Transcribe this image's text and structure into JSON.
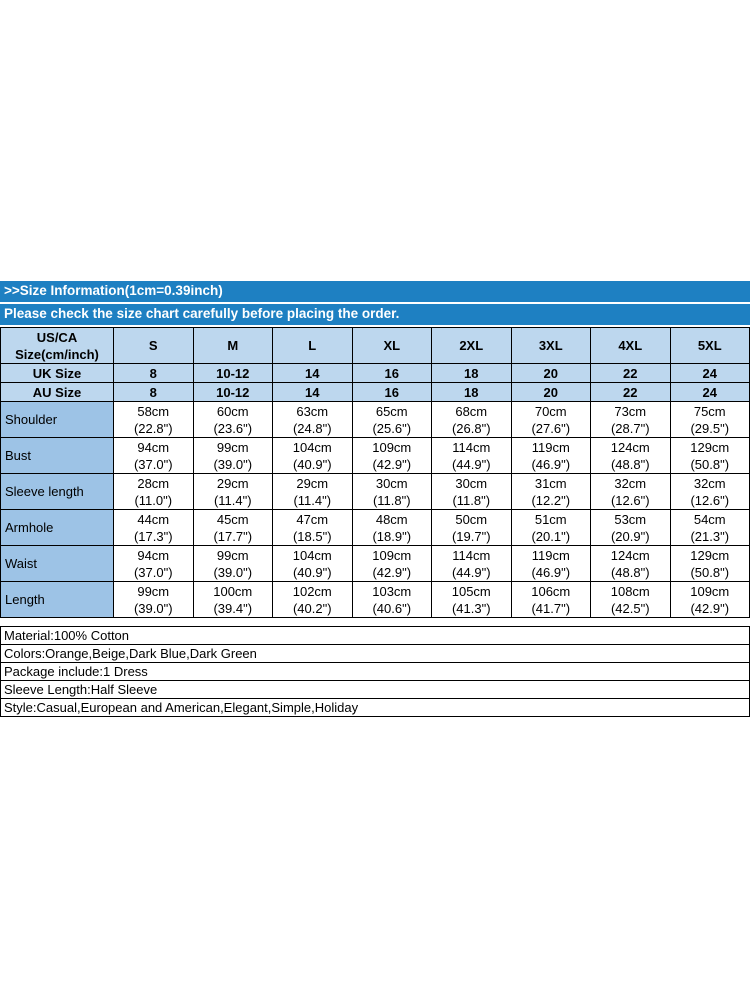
{
  "colors": {
    "banner_blue": "#1e80c2",
    "header_light": "#bdd7ee",
    "label_medium": "#9dc3e6",
    "grid_border": "#000000"
  },
  "banner": {
    "line1": ">>Size Information(1cm=0.39inch)",
    "line2": "Please check the size chart carefully before placing the order."
  },
  "size_table": {
    "corner_line1": "US/CA",
    "corner_line2": "Size(cm/inch)",
    "sizes": [
      "S",
      "M",
      "L",
      "XL",
      "2XL",
      "3XL",
      "4XL",
      "5XL"
    ],
    "uk_row": {
      "label": "UK Size",
      "values": [
        "8",
        "10-12",
        "14",
        "16",
        "18",
        "20",
        "22",
        "24"
      ]
    },
    "au_row": {
      "label": "AU Size",
      "values": [
        "8",
        "10-12",
        "14",
        "16",
        "18",
        "20",
        "22",
        "24"
      ]
    },
    "rows": [
      {
        "label": "Shoulder",
        "cm": [
          "58cm",
          "60cm",
          "63cm",
          "65cm",
          "68cm",
          "70cm",
          "73cm",
          "75cm"
        ],
        "inch": [
          "(22.8\")",
          "(23.6\")",
          "(24.8\")",
          "(25.6\")",
          "(26.8\")",
          "(27.6\")",
          "(28.7\")",
          "(29.5\")"
        ]
      },
      {
        "label": "Bust",
        "cm": [
          "94cm",
          "99cm",
          "104cm",
          "109cm",
          "114cm",
          "119cm",
          "124cm",
          "129cm"
        ],
        "inch": [
          "(37.0\")",
          "(39.0\")",
          "(40.9\")",
          "(42.9\")",
          "(44.9\")",
          "(46.9\")",
          "(48.8\")",
          "(50.8\")"
        ]
      },
      {
        "label": "Sleeve length",
        "cm": [
          "28cm",
          "29cm",
          "29cm",
          "30cm",
          "30cm",
          "31cm",
          "32cm",
          "32cm"
        ],
        "inch": [
          "(11.0\")",
          "(11.4\")",
          "(11.4\")",
          "(11.8\")",
          "(11.8\")",
          "(12.2\")",
          "(12.6\")",
          "(12.6\")"
        ]
      },
      {
        "label": "Armhole",
        "cm": [
          "44cm",
          "45cm",
          "47cm",
          "48cm",
          "50cm",
          "51cm",
          "53cm",
          "54cm"
        ],
        "inch": [
          "(17.3\")",
          "(17.7\")",
          "(18.5\")",
          "(18.9\")",
          "(19.7\")",
          "(20.1\")",
          "(20.9\")",
          "(21.3\")"
        ]
      },
      {
        "label": "Waist",
        "cm": [
          "94cm",
          "99cm",
          "104cm",
          "109cm",
          "114cm",
          "119cm",
          "124cm",
          "129cm"
        ],
        "inch": [
          "(37.0\")",
          "(39.0\")",
          "(40.9\")",
          "(42.9\")",
          "(44.9\")",
          "(46.9\")",
          "(48.8\")",
          "(50.8\")"
        ]
      },
      {
        "label": "Length",
        "cm": [
          "99cm",
          "100cm",
          "102cm",
          "103cm",
          "105cm",
          "106cm",
          "108cm",
          "109cm"
        ],
        "inch": [
          "(39.0\")",
          "(39.4\")",
          "(40.2\")",
          "(40.6\")",
          "(41.3\")",
          "(41.7\")",
          "(42.5\")",
          "(42.9\")"
        ]
      }
    ]
  },
  "details": {
    "lines": [
      "Material:100% Cotton",
      "Colors:Orange,Beige,Dark Blue,Dark Green",
      "Package include:1 Dress",
      "Sleeve Length:Half Sleeve",
      "Style:Casual,European and American,Elegant,Simple,Holiday"
    ]
  }
}
